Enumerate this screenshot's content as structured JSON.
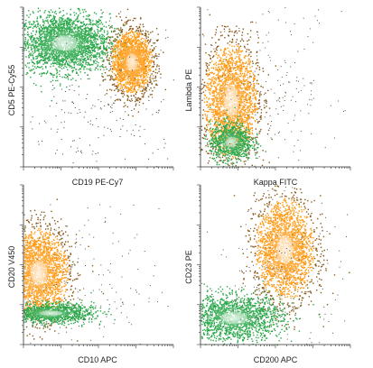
{
  "chart_data": [
    {
      "type": "scatter",
      "xlabel": "CD19 PE-Cy7",
      "ylabel": "CD5 PE-Cy55",
      "grid": false,
      "populations": [
        {
          "color": "#2aa84a",
          "cx": 0.27,
          "cy": 0.78,
          "sx": 0.15,
          "sy": 0.09,
          "n": 2600
        },
        {
          "color": "#ff9a14",
          "cx": 0.72,
          "cy": 0.66,
          "sx": 0.07,
          "sy": 0.1,
          "n": 2000
        },
        {
          "color": "#444444",
          "cx": 0.55,
          "cy": 0.35,
          "sx": 0.3,
          "sy": 0.25,
          "n": 260
        }
      ]
    },
    {
      "type": "scatter",
      "xlabel": "Kappa FITC",
      "ylabel": "Lambda PE",
      "grid": false,
      "populations": [
        {
          "color": "#ff9a14",
          "cx": 0.2,
          "cy": 0.42,
          "sx": 0.09,
          "sy": 0.18,
          "n": 2400
        },
        {
          "color": "#2aa84a",
          "cx": 0.2,
          "cy": 0.16,
          "sx": 0.07,
          "sy": 0.06,
          "n": 900
        },
        {
          "color": "#555555",
          "cx": 0.45,
          "cy": 0.5,
          "sx": 0.25,
          "sy": 0.25,
          "n": 220
        }
      ]
    },
    {
      "type": "scatter",
      "xlabel": "CD10 APC",
      "ylabel": "CD20 V450",
      "grid": false,
      "populations": [
        {
          "color": "#ff9a14",
          "cx": 0.1,
          "cy": 0.45,
          "sx": 0.1,
          "sy": 0.14,
          "n": 2400
        },
        {
          "color": "#2aa84a",
          "cx": 0.18,
          "cy": 0.2,
          "sx": 0.14,
          "sy": 0.03,
          "n": 1200
        },
        {
          "color": "#555555",
          "cx": 0.4,
          "cy": 0.35,
          "sx": 0.25,
          "sy": 0.25,
          "n": 160
        }
      ]
    },
    {
      "type": "scatter",
      "xlabel": "CD200 APC",
      "ylabel": "CD23 PE",
      "grid": false,
      "populations": [
        {
          "color": "#ff9a14",
          "cx": 0.56,
          "cy": 0.6,
          "sx": 0.1,
          "sy": 0.16,
          "n": 2300
        },
        {
          "color": "#2aa84a",
          "cx": 0.22,
          "cy": 0.17,
          "sx": 0.16,
          "sy": 0.07,
          "n": 1700
        },
        {
          "color": "#555555",
          "cx": 0.5,
          "cy": 0.4,
          "sx": 0.25,
          "sy": 0.25,
          "n": 200
        }
      ]
    }
  ]
}
